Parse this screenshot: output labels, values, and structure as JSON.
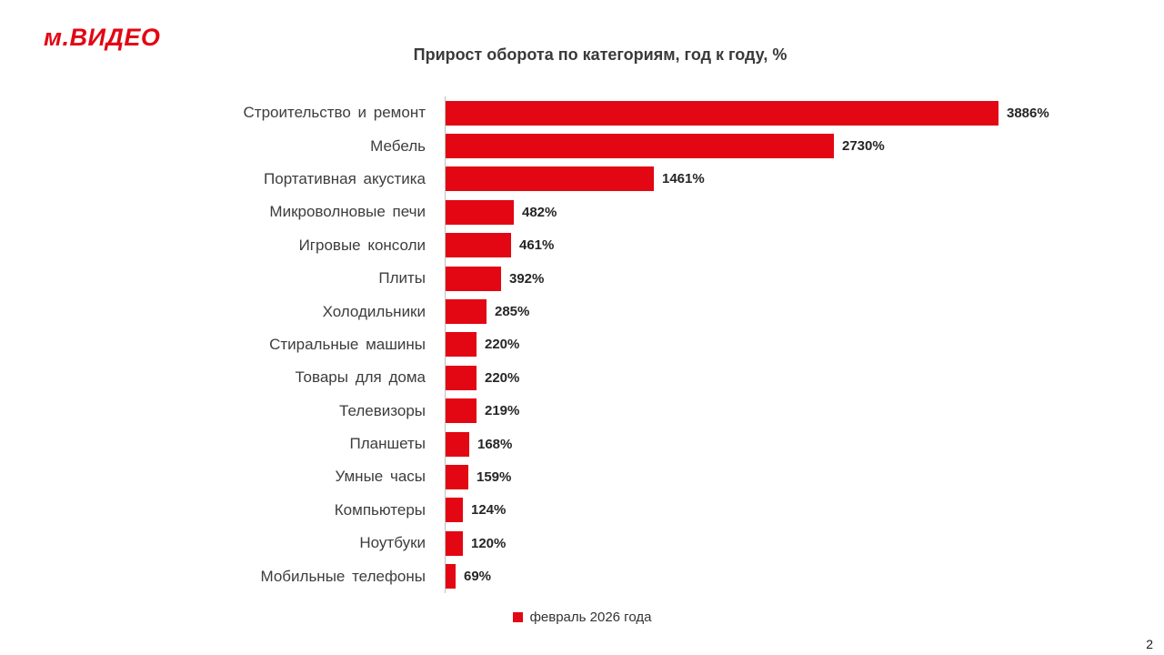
{
  "logo": {
    "text": "м.ВИДЕО",
    "color": "#e30613"
  },
  "title": "Прирост оборота по категориям, год к году, %",
  "legend": {
    "label": "февраль 2026 года",
    "color": "#e30613"
  },
  "page_number": "2",
  "chart_data": {
    "type": "bar",
    "orientation": "horizontal",
    "title": "Прирост оборота по категориям, год к году, %",
    "series_name": "февраль 2026 года",
    "categories": [
      "Строительство и ремонт",
      "Мебель",
      "Портативная акустика",
      "Микроволновые печи",
      "Игровые консоли",
      "Плиты",
      "Холодильники",
      "Стиральные машины",
      "Товары для дома",
      "Телевизоры",
      "Планшеты",
      "Умные часы",
      "Компьютеры",
      "Ноутбуки",
      "Мобильные телефоны"
    ],
    "values": [
      3886,
      2730,
      1461,
      482,
      461,
      392,
      285,
      220,
      220,
      219,
      168,
      159,
      124,
      120,
      69
    ],
    "value_suffix": "%",
    "xlim": [
      0,
      3886
    ],
    "bar_color": "#e30613",
    "grid": false,
    "legend_position": "bottom"
  }
}
